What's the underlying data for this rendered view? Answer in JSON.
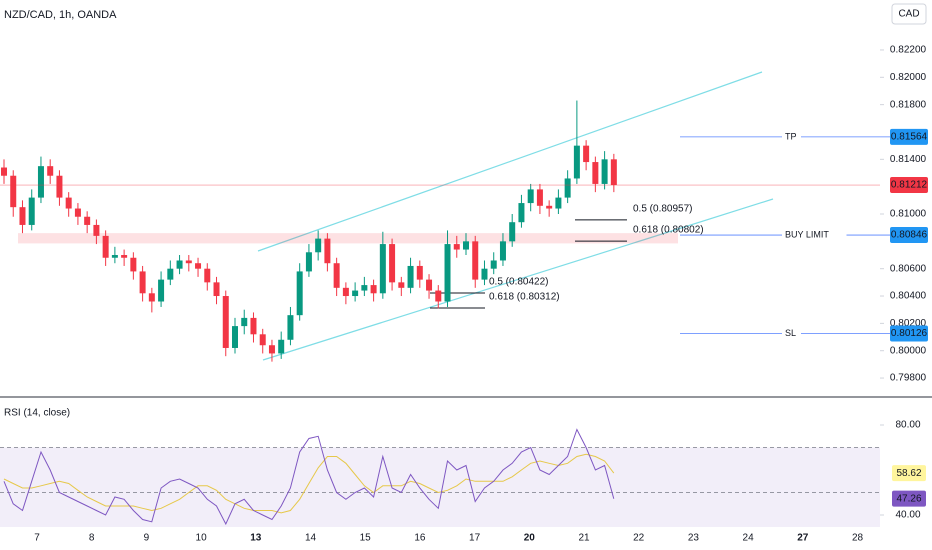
{
  "chart_data": {
    "type": "candlestick",
    "title": "NZD/CAD, 1h, OANDA",
    "currency": "CAD",
    "up_color": "#089981",
    "down_color": "#f23645",
    "ylim": [
      0.79676,
      0.82346
    ],
    "yticks": [
      {
        "value": 0.822,
        "label": "0.82200"
      },
      {
        "value": 0.82,
        "label": "0.82000"
      },
      {
        "value": 0.818,
        "label": "0.81800"
      },
      {
        "value": 0.814,
        "label": "0.81400"
      },
      {
        "value": 0.81,
        "label": "0.81000"
      },
      {
        "value": 0.806,
        "label": "0.80600"
      },
      {
        "value": 0.804,
        "label": "0.80400"
      },
      {
        "value": 0.802,
        "label": "0.80200"
      },
      {
        "value": 0.8,
        "label": "0.80000"
      },
      {
        "value": 0.798,
        "label": "0.79800"
      }
    ],
    "categories": [
      "7",
      "8",
      "9",
      "10",
      "13",
      "14",
      "15",
      "16",
      "17",
      "20",
      "21",
      "22",
      "23",
      "24",
      "27",
      "28"
    ],
    "candles": [
      [
        0.8134,
        0.814,
        0.8122,
        0.8128
      ],
      [
        0.8128,
        0.8132,
        0.8098,
        0.8105
      ],
      [
        0.8105,
        0.811,
        0.8086,
        0.8092
      ],
      [
        0.8092,
        0.8118,
        0.8088,
        0.8112
      ],
      [
        0.8112,
        0.8142,
        0.8108,
        0.8135
      ],
      [
        0.8135,
        0.814,
        0.8122,
        0.8128
      ],
      [
        0.8128,
        0.8132,
        0.8106,
        0.8112
      ],
      [
        0.8112,
        0.8116,
        0.8098,
        0.8104
      ],
      [
        0.8104,
        0.8108,
        0.8092,
        0.8098
      ],
      [
        0.8098,
        0.8102,
        0.8086,
        0.8092
      ],
      [
        0.8092,
        0.8096,
        0.8078,
        0.8084
      ],
      [
        0.8084,
        0.8088,
        0.8062,
        0.8068
      ],
      [
        0.8068,
        0.8076,
        0.8064,
        0.807
      ],
      [
        0.807,
        0.8074,
        0.8062,
        0.8068
      ],
      [
        0.8068,
        0.8072,
        0.8052,
        0.8058
      ],
      [
        0.8058,
        0.8062,
        0.8036,
        0.8042
      ],
      [
        0.8042,
        0.8046,
        0.8028,
        0.8036
      ],
      [
        0.8036,
        0.8058,
        0.8032,
        0.8052
      ],
      [
        0.8052,
        0.8066,
        0.8048,
        0.806
      ],
      [
        0.806,
        0.807,
        0.8056,
        0.8066
      ],
      [
        0.8066,
        0.807,
        0.8058,
        0.8064
      ],
      [
        0.8064,
        0.8068,
        0.8054,
        0.806
      ],
      [
        0.806,
        0.8064,
        0.8044,
        0.805
      ],
      [
        0.805,
        0.8054,
        0.8034,
        0.804
      ],
      [
        0.804,
        0.8044,
        0.7996,
        0.8002
      ],
      [
        0.8002,
        0.8024,
        0.7998,
        0.8018
      ],
      [
        0.8018,
        0.803,
        0.8012,
        0.8024
      ],
      [
        0.8024,
        0.8028,
        0.8006,
        0.8012
      ],
      [
        0.8012,
        0.8016,
        0.7998,
        0.8004
      ],
      [
        0.8004,
        0.8008,
        0.7992,
        0.7998
      ],
      [
        0.7998,
        0.8014,
        0.7994,
        0.8008
      ],
      [
        0.8008,
        0.8032,
        0.8004,
        0.8026
      ],
      [
        0.8026,
        0.8064,
        0.8022,
        0.8058
      ],
      [
        0.8058,
        0.8078,
        0.8054,
        0.8072
      ],
      [
        0.8072,
        0.8088,
        0.8066,
        0.8082
      ],
      [
        0.8082,
        0.8086,
        0.8058,
        0.8064
      ],
      [
        0.8064,
        0.8068,
        0.804,
        0.8046
      ],
      [
        0.8046,
        0.805,
        0.8034,
        0.804
      ],
      [
        0.804,
        0.805,
        0.8036,
        0.8044
      ],
      [
        0.8044,
        0.8054,
        0.804,
        0.8048
      ],
      [
        0.8048,
        0.8052,
        0.8036,
        0.8042
      ],
      [
        0.8042,
        0.8087,
        0.8038,
        0.8078
      ],
      [
        0.8078,
        0.8082,
        0.8044,
        0.805
      ],
      [
        0.805,
        0.8054,
        0.804,
        0.8046
      ],
      [
        0.8046,
        0.8068,
        0.8042,
        0.8062
      ],
      [
        0.8062,
        0.8066,
        0.8046,
        0.8052
      ],
      [
        0.8052,
        0.8056,
        0.8038,
        0.8044
      ],
      [
        0.8044,
        0.8048,
        0.8031,
        0.8036
      ],
      [
        0.8036,
        0.8088,
        0.8032,
        0.8078
      ],
      [
        0.8078,
        0.8084,
        0.8068,
        0.8074
      ],
      [
        0.8074,
        0.8086,
        0.807,
        0.808
      ],
      [
        0.808,
        0.8084,
        0.8046,
        0.8052
      ],
      [
        0.8052,
        0.8066,
        0.8048,
        0.806
      ],
      [
        0.806,
        0.8072,
        0.8056,
        0.8066
      ],
      [
        0.8066,
        0.8086,
        0.8062,
        0.808
      ],
      [
        0.808,
        0.81,
        0.8076,
        0.8094
      ],
      [
        0.8094,
        0.8114,
        0.809,
        0.8108
      ],
      [
        0.8108,
        0.8122,
        0.8102,
        0.8118
      ],
      [
        0.8118,
        0.8122,
        0.81,
        0.8106
      ],
      [
        0.8106,
        0.811,
        0.8098,
        0.8104
      ],
      [
        0.8104,
        0.8118,
        0.81,
        0.8112
      ],
      [
        0.8112,
        0.8132,
        0.8108,
        0.8126
      ],
      [
        0.8126,
        0.8183,
        0.8122,
        0.815
      ],
      [
        0.815,
        0.8154,
        0.8132,
        0.8138
      ],
      [
        0.8138,
        0.8142,
        0.8116,
        0.8122
      ],
      [
        0.8122,
        0.8146,
        0.8118,
        0.814
      ],
      [
        0.814,
        0.8144,
        0.8116,
        0.81212
      ]
    ],
    "zone": [
      0.80785,
      0.8086
    ],
    "levels": [
      {
        "name": "TP",
        "value": 0.81564
      },
      {
        "name": "BUY LIMIT",
        "value": 0.80846
      },
      {
        "name": "SL",
        "value": 0.80126
      }
    ],
    "fibs": [
      {
        "value": 0.80957,
        "label": "0.5 (0.80957)"
      },
      {
        "value": 0.80802,
        "label": "0.618 (0.80802)"
      },
      {
        "value": 0.80422,
        "label": "0.5 (0.80422)"
      },
      {
        "value": 0.80312,
        "label": "0.618 (0.80312)"
      }
    ],
    "rsi": {
      "title": "RSI (14, close)",
      "color": "#7e57c2",
      "ma_color": "#e6c84a",
      "ylim": [
        34.67,
        92
      ],
      "yticks": [
        {
          "value": 80,
          "label": "80.00"
        },
        {
          "value": 40,
          "label": "40.00"
        }
      ],
      "band": [
        30,
        70
      ],
      "levels": [
        70,
        50
      ],
      "values": [
        55,
        45,
        42,
        55,
        68,
        60,
        50,
        48,
        46,
        44,
        42,
        40,
        48,
        47,
        42,
        38,
        37,
        52,
        55,
        56,
        54,
        52,
        47,
        44,
        36,
        45,
        47,
        42,
        40,
        38,
        44,
        52,
        68,
        74,
        75,
        60,
        50,
        47,
        50,
        52,
        48,
        66,
        52,
        50,
        58,
        52,
        47,
        43,
        64,
        60,
        62,
        46,
        52,
        55,
        60,
        63,
        68,
        70,
        60,
        58,
        62,
        66,
        78,
        70,
        60,
        62,
        47.26
      ],
      "ma": [
        56,
        54,
        52,
        52,
        53,
        54,
        55,
        54,
        51,
        48,
        46,
        44,
        44,
        44,
        44,
        43,
        42,
        43,
        45,
        47,
        50,
        53,
        53,
        51,
        47,
        45,
        43,
        42,
        42,
        42,
        41,
        42,
        47,
        54,
        61,
        66,
        66,
        63,
        58,
        53,
        50,
        53,
        53,
        53,
        55,
        54,
        52,
        50,
        51,
        53,
        56,
        55,
        55,
        55,
        55,
        57,
        60,
        63,
        64,
        63,
        62,
        63,
        66,
        67,
        66,
        64,
        58.62
      ]
    }
  }
}
